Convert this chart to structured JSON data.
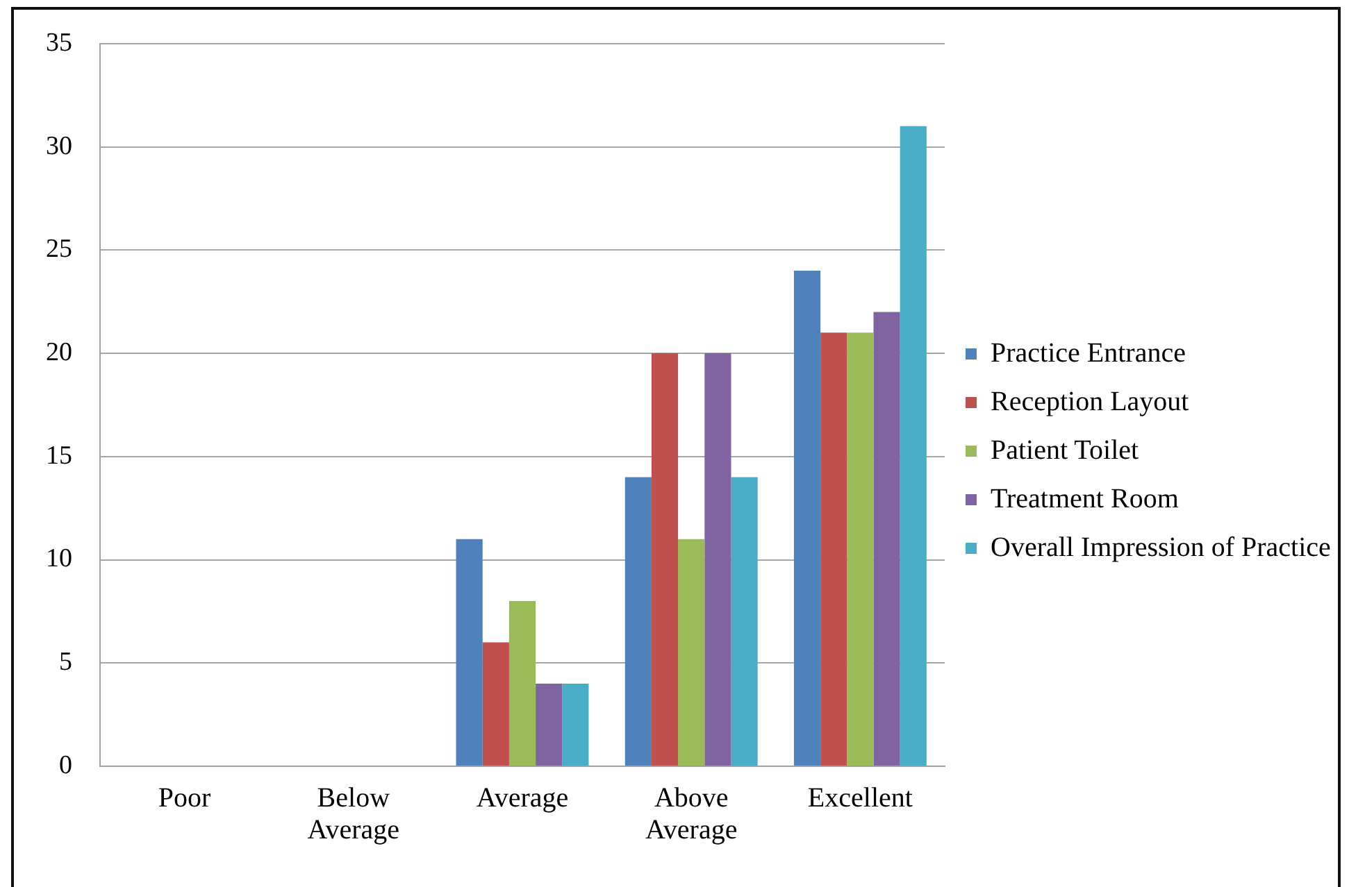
{
  "chart_data": {
    "type": "bar",
    "categories": [
      "Poor",
      "Below Average",
      "Average",
      "Above Average",
      "Excellent"
    ],
    "series": [
      {
        "name": "Practice Entrance",
        "color": "#4f81bd",
        "values": [
          0,
          0,
          11,
          14,
          24
        ]
      },
      {
        "name": "Reception Layout",
        "color": "#c0504d",
        "values": [
          0,
          0,
          6,
          20,
          21
        ]
      },
      {
        "name": "Patient Toilet",
        "color": "#9bbb59",
        "values": [
          0,
          0,
          8,
          11,
          21
        ]
      },
      {
        "name": "Treatment Room",
        "color": "#8064a2",
        "values": [
          0,
          0,
          4,
          20,
          22
        ]
      },
      {
        "name": "Overall Impression of Practice",
        "color": "#4bacc6",
        "values": [
          0,
          0,
          4,
          14,
          31
        ]
      }
    ],
    "ylim": [
      0,
      35
    ],
    "yticks": [
      0,
      5,
      10,
      15,
      20,
      25,
      30,
      35
    ],
    "grid": "y",
    "legend": "right"
  }
}
